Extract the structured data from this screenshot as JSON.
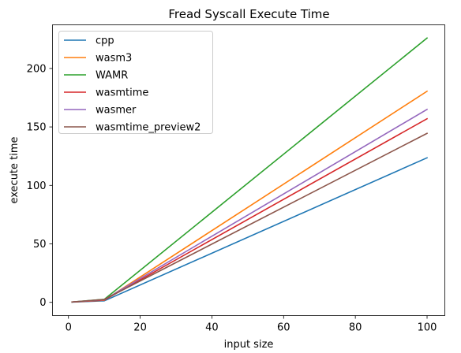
{
  "chart_data": {
    "type": "line",
    "title": "Fread Syscall Execute Time",
    "xlabel": "input size",
    "ylabel": "execute time",
    "x": [
      1,
      10,
      100
    ],
    "xlim": [
      -4.45,
      104.95
    ],
    "ylim": [
      -11.3,
      237.3
    ],
    "xticks": [
      0,
      20,
      40,
      60,
      80,
      100
    ],
    "yticks": [
      0,
      50,
      100,
      150,
      200
    ],
    "grid": false,
    "legend": "upper-left",
    "series": [
      {
        "name": "cpp",
        "color": "#1f77b4",
        "values": [
          0.2,
          1.3,
          123.6
        ]
      },
      {
        "name": "wasm3",
        "color": "#ff7f0e",
        "values": [
          0.3,
          1.8,
          180.5
        ]
      },
      {
        "name": "WAMR",
        "color": "#2ca02c",
        "values": [
          0.3,
          2.6,
          226.0
        ]
      },
      {
        "name": "wasmtime",
        "color": "#d62728",
        "values": [
          0.3,
          2.0,
          157.0
        ]
      },
      {
        "name": "wasmer",
        "color": "#9467bd",
        "values": [
          0.3,
          2.3,
          165.0
        ]
      },
      {
        "name": "wasmtime_preview2",
        "color": "#8c564b",
        "values": [
          0.3,
          2.5,
          144.5
        ]
      }
    ]
  }
}
